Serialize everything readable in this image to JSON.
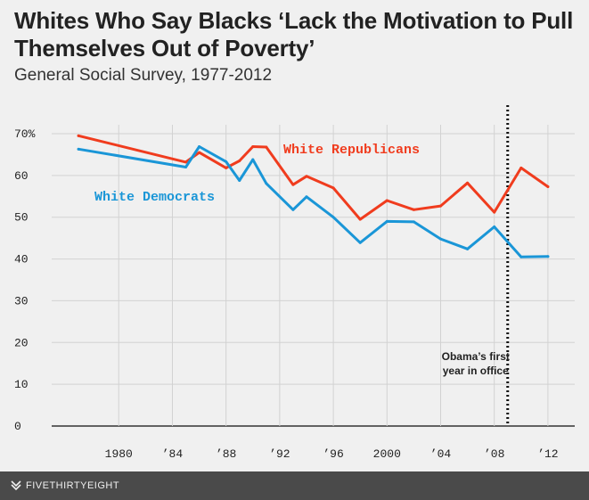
{
  "title": "Whites Who Say Blacks ‘Lack the Motivation to Pull Themselves Out of Poverty’",
  "subtitle": "General Social Survey, 1977-2012",
  "footer": {
    "brand": "FIVETHIRTYEIGHT",
    "logo_icon": "fivethirtyeight-logo-icon"
  },
  "chart_data": {
    "type": "line",
    "xlim": [
      1975,
      2014
    ],
    "ylim": [
      0,
      70
    ],
    "y_ticks": [
      {
        "value": 70,
        "label": "70%"
      },
      {
        "value": 60,
        "label": "60"
      },
      {
        "value": 50,
        "label": "50"
      },
      {
        "value": 40,
        "label": "40"
      },
      {
        "value": 30,
        "label": "30"
      },
      {
        "value": 20,
        "label": "20"
      },
      {
        "value": 10,
        "label": "10"
      },
      {
        "value": 0,
        "label": "0"
      }
    ],
    "x_ticks": [
      {
        "value": 1980,
        "label": "1980"
      },
      {
        "value": 1984,
        "label": "’84"
      },
      {
        "value": 1988,
        "label": "’88"
      },
      {
        "value": 1992,
        "label": "’92"
      },
      {
        "value": 1996,
        "label": "’96"
      },
      {
        "value": 2000,
        "label": "2000"
      },
      {
        "value": 2004,
        "label": "’04"
      },
      {
        "value": 2008,
        "label": "’08"
      },
      {
        "value": 2012,
        "label": "’12"
      }
    ],
    "grid": true,
    "series": [
      {
        "name": "White Republicans",
        "color": "#f03c1e",
        "x": [
          1977,
          1985,
          1986,
          1988,
          1989,
          1990,
          1991,
          1993,
          1994,
          1996,
          1998,
          2000,
          2002,
          2004,
          2006,
          2008,
          2010,
          2012
        ],
        "y": [
          69.5,
          63.2,
          65.5,
          61.8,
          63.5,
          66.9,
          66.8,
          57.8,
          59.8,
          57.0,
          49.5,
          54.0,
          51.8,
          52.7,
          58.2,
          51.2,
          61.8,
          57.3
        ]
      },
      {
        "name": "White Democrats",
        "color": "#1a96d7",
        "x": [
          1977,
          1985,
          1986,
          1988,
          1989,
          1990,
          1991,
          1993,
          1994,
          1996,
          1998,
          2000,
          2002,
          2004,
          2006,
          2008,
          2010,
          2012
        ],
        "y": [
          66.3,
          62.0,
          66.9,
          63.3,
          58.8,
          63.8,
          58.1,
          51.8,
          54.9,
          50.0,
          43.9,
          49.0,
          48.9,
          44.8,
          42.4,
          47.7,
          40.5,
          40.6
        ]
      }
    ],
    "annotations": [
      {
        "type": "vline",
        "x": 2009,
        "style": "dotted",
        "color": "#111",
        "text_lines": [
          "Obama’s first",
          "year in office"
        ]
      }
    ]
  }
}
